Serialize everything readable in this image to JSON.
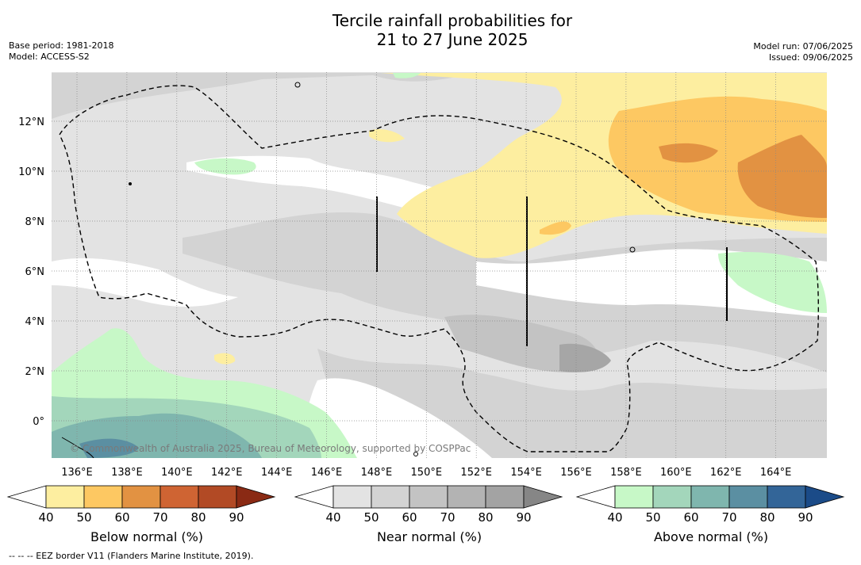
{
  "title": {
    "line1": "Tercile rainfall probabilities for",
    "line2": "21 to 27 June 2025"
  },
  "meta_left": {
    "base_period": "Base period: 1981-2018",
    "model": "Model: ACCESS-S2"
  },
  "meta_right": {
    "model_run": "Model run: 07/06/2025",
    "issued": "Issued: 09/06/2025"
  },
  "map": {
    "lon_labels": [
      "136°E",
      "138°E",
      "140°E",
      "142°E",
      "144°E",
      "146°E",
      "148°E",
      "150°E",
      "152°E",
      "154°E",
      "156°E",
      "158°E",
      "160°E",
      "162°E",
      "164°E"
    ],
    "lat_labels": [
      "12°N",
      "10°N",
      "8°N",
      "6°N",
      "4°N",
      "2°N",
      "0°"
    ],
    "copyright": "© Commonwealth of Australia 2025, Bureau of Meteorology, supported by COSPPac"
  },
  "colorbars": [
    {
      "label": "Below normal (%)",
      "ticks": [
        "40",
        "50",
        "60",
        "70",
        "80",
        "90"
      ],
      "colors": [
        "#ffffff",
        "#fdeea0",
        "#fdc862",
        "#e29242",
        "#cf6433",
        "#b24a25",
        "#8a2a14"
      ]
    },
    {
      "label": "Near normal (%)",
      "ticks": [
        "40",
        "50",
        "60",
        "70",
        "80",
        "90"
      ],
      "colors": [
        "#ffffff",
        "#e3e3e3",
        "#d3d3d3",
        "#c3c3c3",
        "#b3b3b3",
        "#a3a3a3",
        "#868686"
      ]
    },
    {
      "label": "Above normal (%)",
      "ticks": [
        "40",
        "50",
        "60",
        "70",
        "80",
        "90"
      ],
      "colors": [
        "#ffffff",
        "#c7f8c7",
        "#a3d6bb",
        "#7fb6ae",
        "#5b8fa2",
        "#336598",
        "#1b4b88"
      ]
    }
  ],
  "legend_footer": "--  --  -- EEZ border V11 (Flanders Marine Institute, 2019)."
}
